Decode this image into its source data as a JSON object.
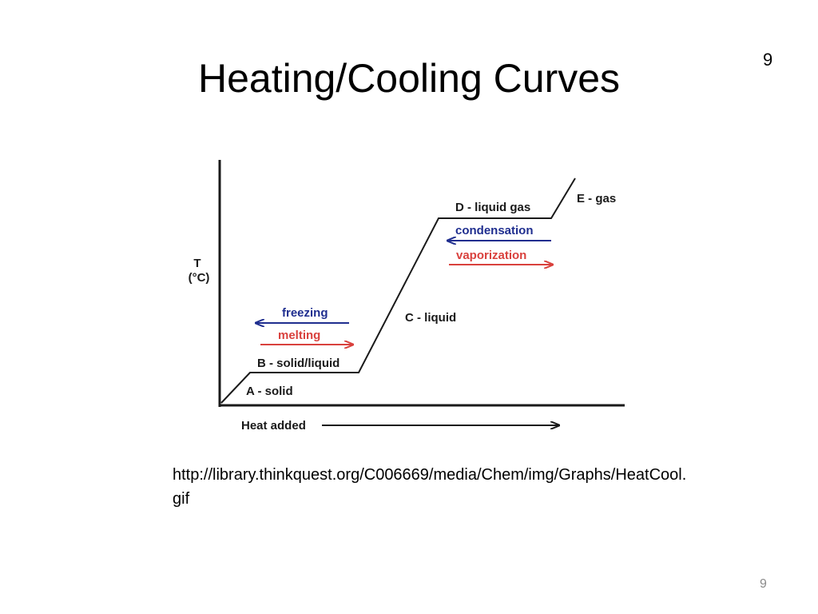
{
  "slide": {
    "title": "Heating/Cooling Curves",
    "corner_number": "9",
    "page_number": "9",
    "source": "http://library.thinkquest.org/C006669/media/Chem/img/Graphs/HeatCool.gif"
  },
  "diagram": {
    "y_axis_label_line1": "T",
    "y_axis_label_line2": "(°C)",
    "x_axis_label": "Heat added",
    "segments": {
      "a": "A - solid",
      "b": "B - solid/liquid",
      "c": "C - liquid",
      "d": "D - liquid gas",
      "e": "E - gas"
    },
    "processes": {
      "freezing": "freezing",
      "melting": "melting",
      "condensation": "condensation",
      "vaporization": "vaporization"
    },
    "colors": {
      "cooling_arrow": "#1f2e8f",
      "heating_arrow": "#d9413d",
      "curve": "#1a1a1a"
    }
  }
}
